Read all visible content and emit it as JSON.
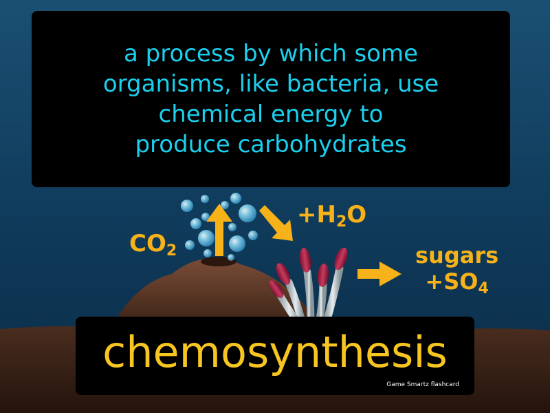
{
  "definition": {
    "lines": [
      "a process by which some",
      "organisms, like bacteria, use",
      "chemical energy to",
      "produce carbohydrates"
    ]
  },
  "labels": {
    "co2_main": "CO",
    "co2_sub": "2",
    "h2o_plus": "+H",
    "h2o_sub": "2",
    "h2o_o": "O",
    "sugars": "sugars",
    "so4_main": "+SO",
    "so4_sub": "4"
  },
  "term": "chemosynthesis",
  "credit": "Game Smartz flashcard",
  "colors": {
    "definition_text": "#1ad0ee",
    "term_text": "#f7c520",
    "label_text": "#f7b21a",
    "arrow": "#f7b21a"
  }
}
